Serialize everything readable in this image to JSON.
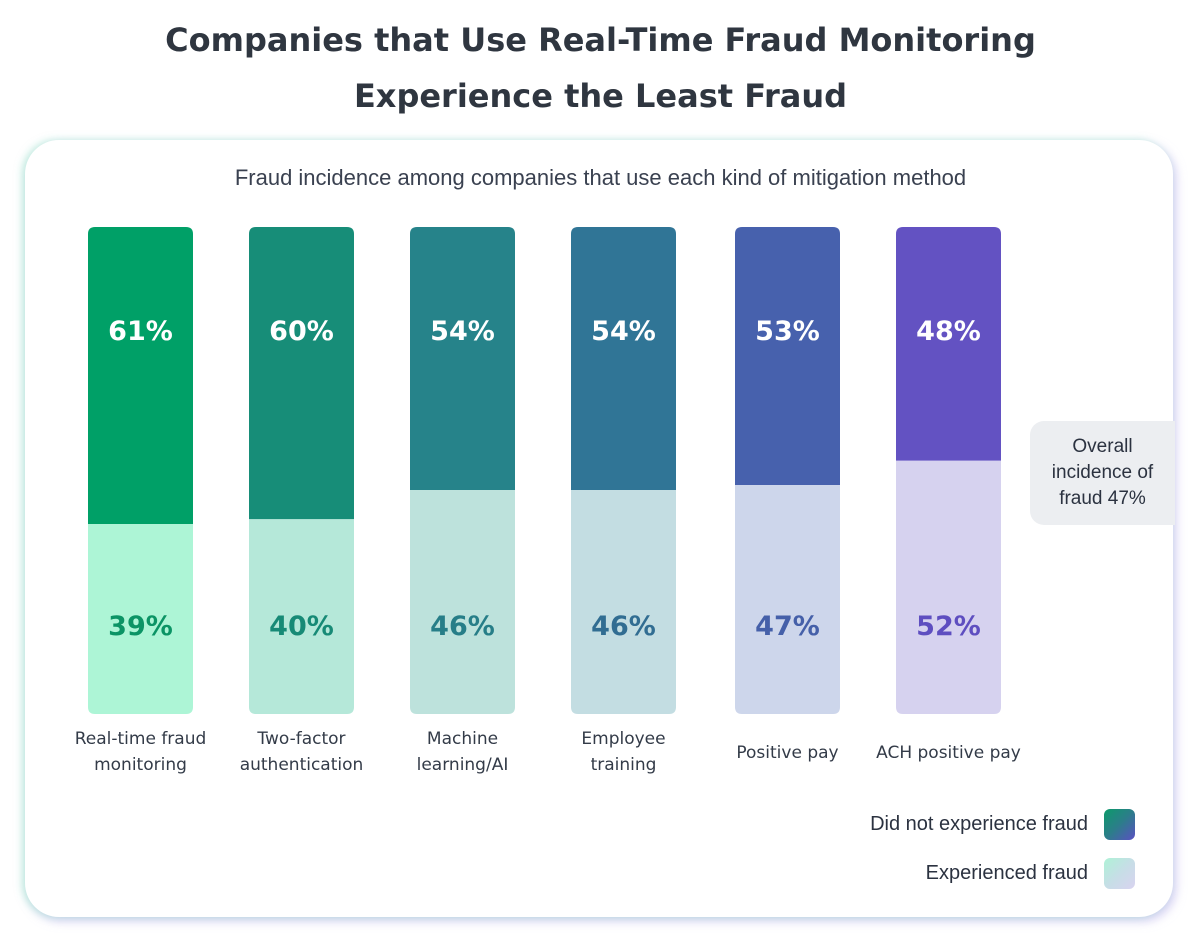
{
  "title_line1": "Companies that Use Real-Time Fraud Monitoring",
  "title_line2": "Experience the Least Fraud",
  "subtitle": "Fraud incidence among companies that use each kind of mitigation method",
  "overall_note": "Overall incidence of fraud 47%",
  "legend": {
    "did_not": "Did not experience fraud",
    "experienced": "Experienced fraud"
  },
  "chart_data": {
    "type": "bar",
    "stacked": true,
    "percent": true,
    "categories": [
      [
        "Real-time fraud",
        "monitoring"
      ],
      [
        "Two-factor",
        "authentication"
      ],
      [
        "Machine",
        "learning/AI"
      ],
      [
        "Employee",
        "training"
      ],
      [
        "Positive pay"
      ],
      [
        "ACH positive pay"
      ]
    ],
    "series": [
      {
        "name": "Did not experience fraud",
        "values": [
          61,
          60,
          54,
          54,
          53,
          48
        ]
      },
      {
        "name": "Experienced fraud",
        "values": [
          39,
          40,
          46,
          46,
          47,
          52
        ]
      }
    ],
    "colors": {
      "top": [
        "#00a067",
        "#178d78",
        "#26838a",
        "#307596",
        "#4761ad",
        "#6352c2"
      ],
      "bottom": [
        "#adf5d6",
        "#b5e8d9",
        "#bde2dc",
        "#c3dde2",
        "#cdd6eb",
        "#d6d2ef"
      ],
      "label_bottom": [
        "#0b9465",
        "#178a76",
        "#277e88",
        "#316d92",
        "#4560a9",
        "#5e4ec0"
      ]
    },
    "ylim": [
      0,
      100
    ],
    "legend_position": "bottom-right"
  }
}
